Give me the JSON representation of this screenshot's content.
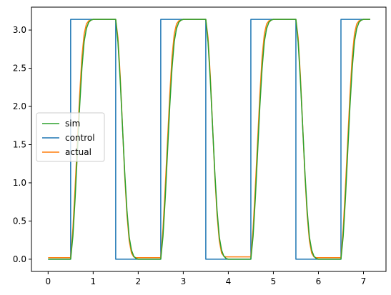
{
  "chart_data": {
    "type": "line",
    "title": "",
    "xlabel": "",
    "ylabel": "",
    "xlim": [
      -0.37,
      7.5
    ],
    "ylim": [
      -0.16,
      3.3
    ],
    "xticks": [
      0,
      1,
      2,
      3,
      4,
      5,
      6,
      7
    ],
    "yticks": [
      0.0,
      0.5,
      1.0,
      1.5,
      2.0,
      2.5,
      3.0
    ],
    "xtick_labels": [
      "0",
      "1",
      "2",
      "3",
      "4",
      "5",
      "6",
      "7"
    ],
    "ytick_labels": [
      "0.0",
      "0.5",
      "1.0",
      "1.5",
      "2.0",
      "2.5",
      "3.0"
    ],
    "grid": false,
    "legend_position": "center-left",
    "series": [
      {
        "name": "sim",
        "color": "#2ca02c",
        "x": [
          0,
          0.5,
          0.55,
          0.6,
          0.65,
          0.7,
          0.75,
          0.8,
          0.85,
          0.9,
          0.95,
          1.0,
          1.1,
          1.2,
          1.5,
          1.55,
          1.6,
          1.65,
          1.7,
          1.75,
          1.8,
          1.85,
          1.9,
          1.95,
          2.0,
          2.5,
          2.55,
          2.6,
          2.65,
          2.7,
          2.75,
          2.8,
          2.85,
          2.9,
          2.95,
          3.0,
          3.1,
          3.5,
          3.55,
          3.6,
          3.65,
          3.7,
          3.75,
          3.8,
          3.85,
          3.9,
          3.95,
          4.0,
          4.5,
          4.55,
          4.6,
          4.65,
          4.7,
          4.75,
          4.8,
          4.85,
          4.9,
          4.95,
          5.0,
          5.1,
          5.5,
          5.55,
          5.6,
          5.65,
          5.7,
          5.75,
          5.8,
          5.85,
          5.9,
          5.95,
          6.0,
          6.5,
          6.55,
          6.6,
          6.65,
          6.7,
          6.75,
          6.8,
          6.85,
          6.9,
          6.95,
          7.0,
          7.15
        ],
        "values": [
          0.0,
          0.0,
          0.3,
          0.8,
          1.4,
          2.0,
          2.5,
          2.85,
          3.02,
          3.1,
          3.13,
          3.14,
          3.14,
          3.14,
          3.14,
          2.84,
          2.34,
          1.74,
          1.14,
          0.64,
          0.29,
          0.12,
          0.04,
          0.01,
          0.0,
          0.0,
          0.3,
          0.8,
          1.4,
          2.0,
          2.5,
          2.85,
          3.02,
          3.1,
          3.13,
          3.14,
          3.14,
          3.14,
          2.84,
          2.34,
          1.74,
          1.14,
          0.64,
          0.29,
          0.12,
          0.04,
          0.01,
          0.0,
          0.0,
          0.3,
          0.8,
          1.4,
          2.0,
          2.5,
          2.85,
          3.02,
          3.1,
          3.13,
          3.14,
          3.14,
          3.14,
          2.84,
          2.34,
          1.74,
          1.14,
          0.64,
          0.29,
          0.12,
          0.04,
          0.01,
          0.0,
          0.0,
          0.3,
          0.8,
          1.4,
          2.0,
          2.5,
          2.85,
          3.02,
          3.1,
          3.13,
          3.14,
          3.14
        ]
      },
      {
        "name": "control",
        "color": "#1f77b4",
        "x": [
          0,
          0.5,
          0.5,
          1.5,
          1.5,
          2.5,
          2.5,
          3.5,
          3.5,
          4.5,
          4.5,
          5.5,
          5.5,
          6.5,
          6.5,
          7.15
        ],
        "values": [
          0.0,
          0.0,
          3.14,
          3.14,
          0.0,
          0.0,
          3.14,
          3.14,
          0.0,
          0.0,
          3.14,
          3.14,
          0.0,
          0.0,
          3.14,
          3.14
        ]
      },
      {
        "name": "actual",
        "color": "#ff7f0e",
        "x": [
          0,
          0.5,
          0.55,
          0.6,
          0.65,
          0.7,
          0.75,
          0.8,
          0.85,
          0.9,
          0.95,
          1.0,
          1.1,
          1.5,
          1.55,
          1.6,
          1.65,
          1.7,
          1.75,
          1.8,
          1.85,
          1.9,
          1.95,
          2.0,
          2.5,
          2.55,
          2.6,
          2.65,
          2.7,
          2.75,
          2.8,
          2.85,
          2.9,
          2.95,
          3.0,
          3.5,
          3.55,
          3.6,
          3.65,
          3.7,
          3.75,
          3.8,
          3.85,
          3.9,
          3.95,
          4.0,
          4.5,
          4.55,
          4.6,
          4.65,
          4.7,
          4.75,
          4.8,
          4.85,
          4.9,
          4.95,
          5.0,
          5.5,
          5.55,
          5.6,
          5.65,
          5.7,
          5.75,
          5.8,
          5.85,
          5.9,
          5.95,
          6.0,
          6.5,
          6.55,
          6.6,
          6.65,
          6.7,
          6.75,
          6.8,
          6.85,
          6.9,
          6.95,
          7.0,
          7.15
        ],
        "values": [
          0.02,
          0.02,
          0.4,
          0.95,
          1.55,
          2.15,
          2.65,
          2.95,
          3.08,
          3.12,
          3.13,
          3.14,
          3.14,
          3.14,
          2.9,
          2.4,
          1.75,
          1.1,
          0.58,
          0.24,
          0.08,
          0.03,
          0.02,
          0.02,
          0.02,
          0.4,
          0.95,
          1.55,
          2.15,
          2.65,
          2.95,
          3.08,
          3.12,
          3.13,
          3.14,
          3.14,
          2.9,
          2.4,
          1.75,
          1.1,
          0.58,
          0.24,
          0.08,
          0.04,
          0.03,
          0.03,
          0.03,
          0.4,
          0.95,
          1.55,
          2.15,
          2.65,
          2.95,
          3.08,
          3.12,
          3.13,
          3.14,
          3.14,
          2.9,
          2.4,
          1.75,
          1.1,
          0.58,
          0.24,
          0.08,
          0.03,
          0.02,
          0.02,
          0.02,
          0.4,
          0.95,
          1.55,
          2.15,
          2.65,
          2.95,
          3.08,
          3.12,
          3.13,
          3.14,
          3.14
        ]
      }
    ]
  }
}
